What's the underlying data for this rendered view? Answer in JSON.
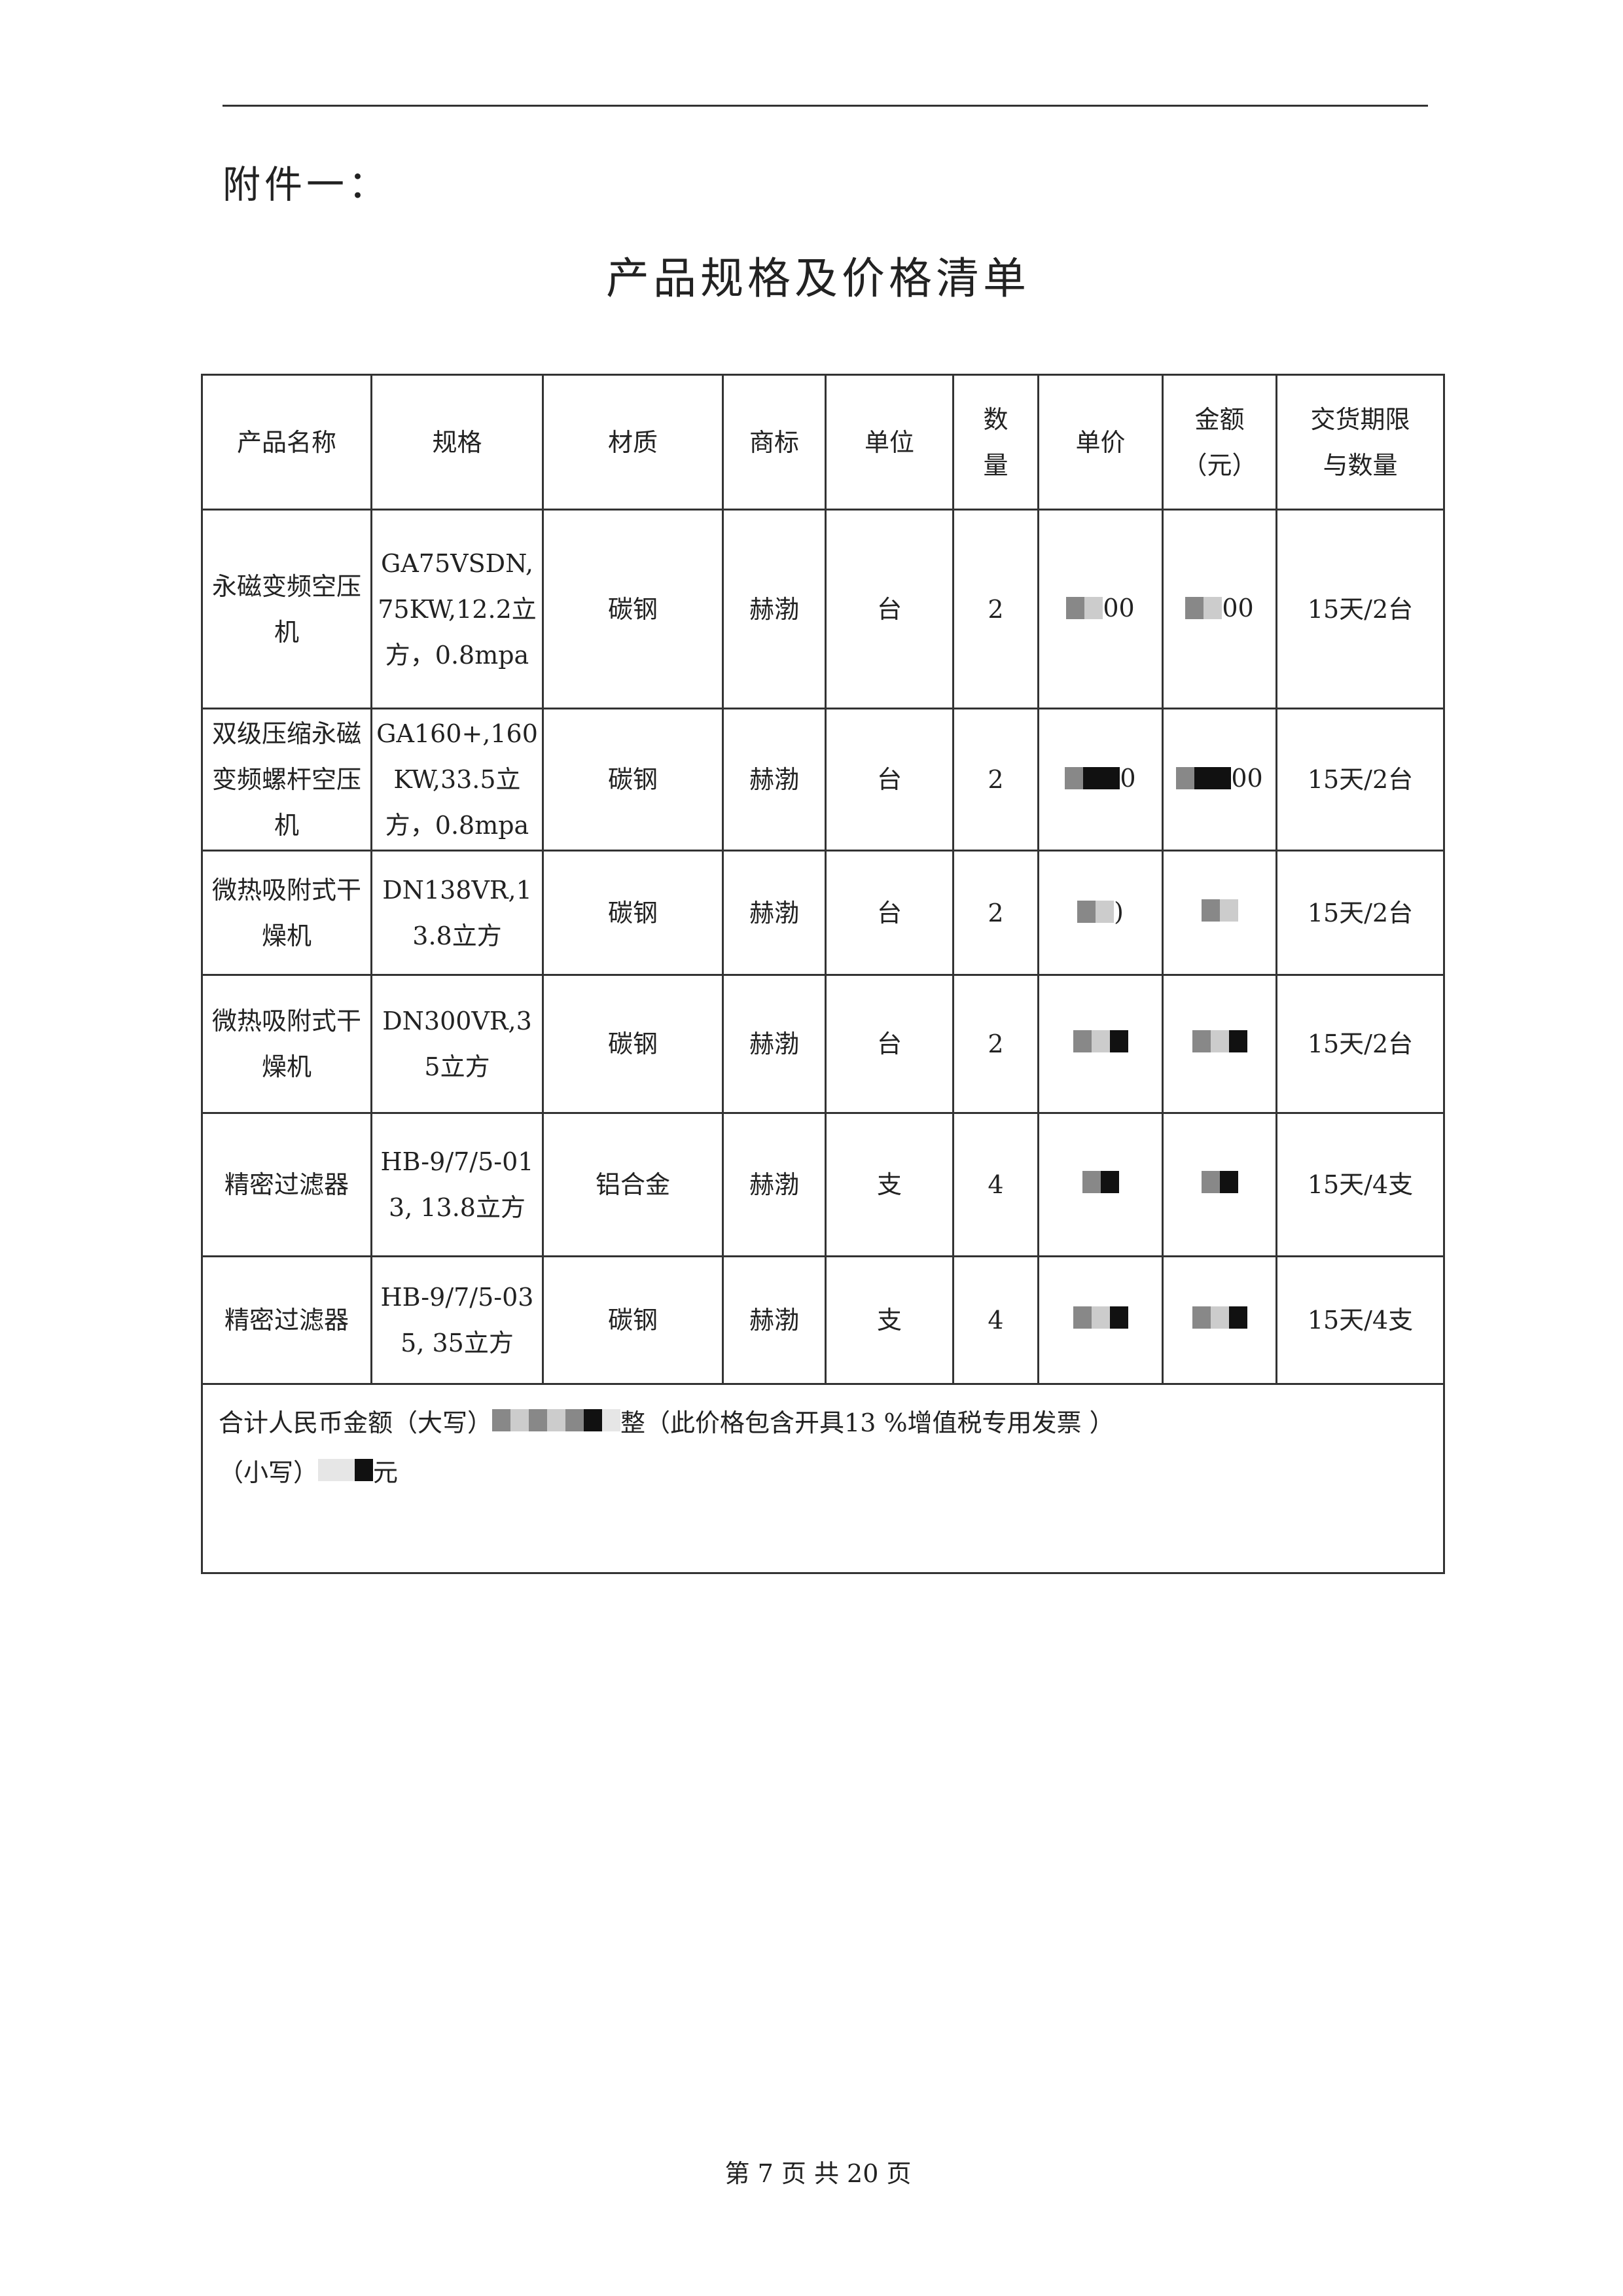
{
  "annex_label": "附件一：",
  "title": "产品规格及价格清单",
  "table": {
    "headers": [
      "产品名称",
      "规格",
      "材质",
      "商标",
      "单位",
      "数量",
      "单价",
      "金额（元）",
      "交货期限与数量"
    ],
    "rows": [
      {
        "name": "永磁变频空压机",
        "spec": "GA75VSDN,75KW,12.2立方，0.8mpa",
        "material": "碳钢",
        "brand": "赫渤",
        "unit": "台",
        "qty": "2",
        "unit_price": "00",
        "amount": "00",
        "delivery": "15天/2台"
      },
      {
        "name": "双级压缩永磁变频螺杆空压机",
        "spec": "GA160+,160KW,33.5立方，0.8mpa",
        "material": "碳钢",
        "brand": "赫渤",
        "unit": "台",
        "qty": "2",
        "unit_price": "0",
        "amount": "00",
        "delivery": "15天/2台"
      },
      {
        "name": "微热吸附式干燥机",
        "spec": "DN138VR,13.8立方",
        "material": "碳钢",
        "brand": "赫渤",
        "unit": "台",
        "qty": "2",
        "unit_price": ")",
        "amount": "",
        "delivery": "15天/2台"
      },
      {
        "name": "微热吸附式干燥机",
        "spec": "DN300VR,35立方",
        "material": "碳钢",
        "brand": "赫渤",
        "unit": "台",
        "qty": "2",
        "unit_price": "",
        "amount": "",
        "delivery": "15天/2台"
      },
      {
        "name": "精密过滤器",
        "spec": "HB-9/7/5-013, 13.8立方",
        "material": "铝合金",
        "brand": "赫渤",
        "unit": "支",
        "qty": "4",
        "unit_price": "",
        "amount": "",
        "delivery": "15天/4支"
      },
      {
        "name": "精密过滤器",
        "spec": "HB-9/7/5-035, 35立方",
        "material": "碳钢",
        "brand": "赫渤",
        "unit": "支",
        "qty": "4",
        "unit_price": "",
        "amount": "",
        "delivery": "15天/4支"
      }
    ],
    "total_upper_prefix": "合计人民币金额（大写）",
    "total_upper_suffix": "整（此价格包含开具13 %增值税专用发票 ）",
    "total_lower_prefix": "（小写）",
    "total_lower_suffix": "元"
  },
  "footer": "第 7 页 共 20 页"
}
